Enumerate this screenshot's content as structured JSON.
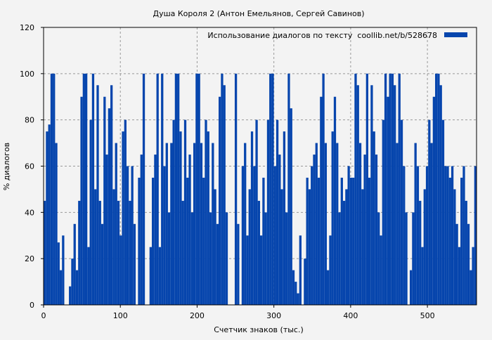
{
  "chart_data": {
    "type": "bar",
    "title": "Душа Короля 2 (Антон Емельянов, Сергей Савинов)",
    "xlabel": "Счетчик знаков (тыс.)",
    "ylabel": "% диалогов",
    "xlim": [
      0,
      564
    ],
    "ylim": [
      0,
      120
    ],
    "xticks": [
      0,
      100,
      200,
      300,
      400,
      500
    ],
    "yticks": [
      0,
      20,
      40,
      60,
      80,
      100,
      120
    ],
    "grid": true,
    "legend": {
      "position": "top-right",
      "label": "Использование диалогов по тексту  coollib.net/b/528678"
    },
    "bar_color": "#0645ad",
    "series": [
      {
        "name": "Использование диалогов по тексту  coollib.net/b/528678",
        "x_start": 0,
        "bin_width": 3,
        "values": [
          45,
          75,
          78,
          100,
          100,
          70,
          27,
          15,
          30,
          0,
          0,
          8,
          20,
          35,
          15,
          45,
          90,
          100,
          100,
          25,
          80,
          100,
          50,
          95,
          45,
          35,
          90,
          65,
          85,
          95,
          50,
          70,
          45,
          30,
          75,
          80,
          60,
          45,
          60,
          35,
          0,
          55,
          65,
          100,
          0,
          0,
          25,
          55,
          65,
          100,
          25,
          100,
          60,
          70,
          40,
          70,
          80,
          100,
          100,
          75,
          45,
          80,
          55,
          65,
          40,
          70,
          100,
          100,
          70,
          55,
          80,
          75,
          40,
          70,
          50,
          35,
          90,
          100,
          95,
          40,
          0,
          0,
          0,
          100,
          35,
          0,
          60,
          70,
          30,
          50,
          75,
          60,
          80,
          45,
          30,
          55,
          40,
          80,
          100,
          100,
          60,
          80,
          65,
          50,
          75,
          40,
          100,
          85,
          15,
          10,
          5,
          30,
          0,
          20,
          55,
          50,
          60,
          65,
          70,
          55,
          90,
          100,
          70,
          15,
          30,
          75,
          90,
          70,
          40,
          55,
          45,
          50,
          60,
          55,
          55,
          100,
          95,
          70,
          50,
          65,
          100,
          55,
          95,
          75,
          65,
          40,
          30,
          80,
          100,
          90,
          100,
          100,
          95,
          70,
          100,
          80,
          60,
          40,
          0,
          15,
          40,
          70,
          60,
          45,
          25,
          50,
          60,
          80,
          70,
          90,
          100,
          100,
          95,
          80,
          60,
          60,
          55,
          60,
          50,
          35,
          25,
          55,
          60,
          45,
          35,
          15,
          25,
          60
        ]
      }
    ]
  }
}
